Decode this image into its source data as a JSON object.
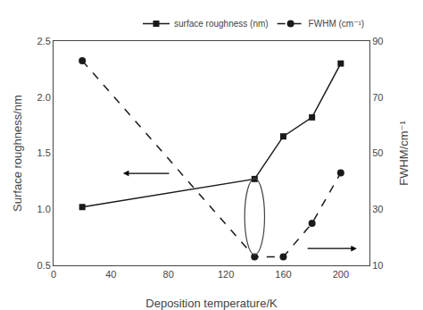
{
  "chart_data": {
    "type": "line",
    "xlabel": "Deposition temperature/K",
    "ylabel": "Surface roughness/nm",
    "y2label": "FWHM/cm⁻¹",
    "x": [
      20,
      140,
      160,
      180,
      200
    ],
    "series": [
      {
        "name": "surface roughness (nm)",
        "color": "#1a1a1a",
        "marker": "square",
        "line_style": "solid",
        "values": [
          1.02,
          1.27,
          1.65,
          1.82,
          2.3
        ]
      },
      {
        "name": "FWHM (cm⁻¹)",
        "color": "#1a1a1a",
        "marker": "circle",
        "line_style": "dashed",
        "axis": "y2",
        "values": [
          83,
          13,
          13,
          25,
          43
        ]
      }
    ],
    "xlim": [
      0,
      220
    ],
    "xticks": [
      0,
      40,
      80,
      120,
      160,
      200
    ],
    "ylim": [
      0.5,
      2.5
    ],
    "yticks": [
      0.5,
      {
        "value": 1,
        "label": "1.0"
      },
      1.5,
      {
        "value": 2,
        "label": "2.0"
      },
      2.5
    ],
    "y2lim": [
      10,
      90
    ],
    "y2ticks": [
      10,
      30,
      50,
      70,
      90
    ],
    "grid": false,
    "legend": "upper right"
  }
}
